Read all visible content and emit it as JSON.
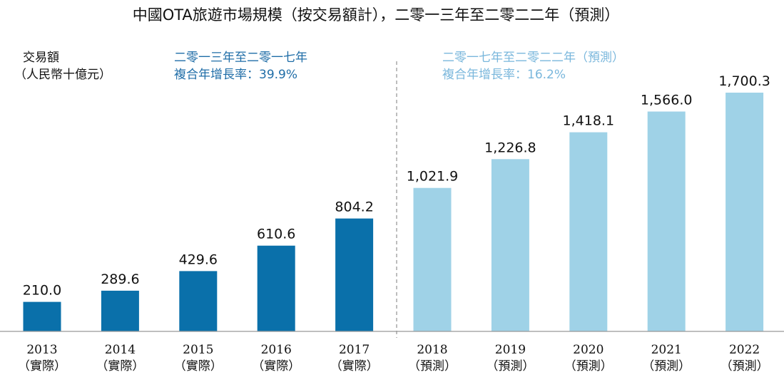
{
  "chart_data": {
    "type": "bar",
    "title": "中國OTA旅遊市場規模（按交易額計），二零一三年至二零二二年（預測）",
    "ylabel_line1": "交易額",
    "ylabel_line2": "（人民幣十億元）",
    "xlabel": "",
    "ylim": [
      0,
      1700.3
    ],
    "grid": false,
    "categories": [
      "2013",
      "2014",
      "2015",
      "2016",
      "2017",
      "2018",
      "2019",
      "2020",
      "2021",
      "2022"
    ],
    "category_notes": [
      "（實際）",
      "（實際）",
      "（實際）",
      "（實際）",
      "（實際）",
      "（預測）",
      "（預測）",
      "（預測）",
      "（預測）",
      "（預測）"
    ],
    "values": [
      210.0,
      289.6,
      429.6,
      610.6,
      804.2,
      1021.9,
      1226.8,
      1418.1,
      1566.0,
      1700.3
    ],
    "value_labels": [
      "210.0",
      "289.6",
      "429.6",
      "610.6",
      "804.2",
      "1,021.9",
      "1,226.8",
      "1,418.1",
      "1,566.0",
      "1,700.3"
    ],
    "annotations": [
      {
        "line1": "二零一三年至二零一七年",
        "line2": "複合年增長率：39.9%",
        "color": "#1f6da7"
      },
      {
        "line1": "二零一七年至二零二二年（預測）",
        "line2": "複合年增長率：16.2%",
        "color": "#7ab7dc"
      }
    ],
    "colors": {
      "actual": "#0a70aa",
      "forecast": "#9fd2e7",
      "axis": "#999999",
      "divider": "#9a9a9a"
    }
  }
}
